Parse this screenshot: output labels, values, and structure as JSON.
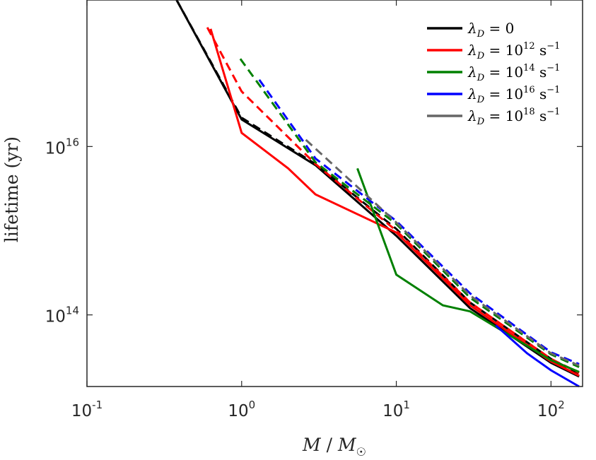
{
  "chart_data": {
    "type": "line",
    "xscale": "log",
    "yscale": "log",
    "xlim": [
      0.1,
      160
    ],
    "ylim": [
      14100000000000.0,
      5.5e+17
    ],
    "xlabel": "M / M☉",
    "ylabel": "lifetime (yr)",
    "xticks": [
      {
        "value": 0.1,
        "base": "10",
        "exp": "-1"
      },
      {
        "value": 1,
        "base": "10",
        "exp": "0"
      },
      {
        "value": 10,
        "base": "10",
        "exp": "1"
      },
      {
        "value": 100,
        "base": "10",
        "exp": "2"
      }
    ],
    "yticks": [
      {
        "value": 100000000000000.0,
        "base": "10",
        "exp": "14"
      },
      {
        "value": 1e+16,
        "base": "10",
        "exp": "16"
      }
    ],
    "grid": false,
    "legend_position": "top-right",
    "series": [
      {
        "name": "λD = 0",
        "symbol": "λ",
        "sub": "D",
        "rest": " = 0",
        "exp": "",
        "unit": "",
        "color": "#000000",
        "solid": [
          [
            0.38,
            5.5e+17
          ],
          [
            1.0,
            2.1e+16
          ],
          [
            3.0,
            6000000000000000.0
          ],
          [
            10.0,
            870000000000000.0
          ],
          [
            30.0,
            120000000000000.0
          ],
          [
            100.0,
            27000000000000.0
          ],
          [
            152.0,
            18500000000000.0
          ]
        ],
        "dashed": [
          [
            0.38,
            5.5e+17
          ],
          [
            1.0,
            2.2e+16
          ],
          [
            3.0,
            6200000000000000.0
          ],
          [
            10.0,
            1050000000000000.0
          ],
          [
            30.0,
            140000000000000.0
          ],
          [
            100.0,
            30000000000000.0
          ],
          [
            152.0,
            20000000000000.0
          ]
        ]
      },
      {
        "name": "λD = 10^12 s^-1",
        "symbol": "λ",
        "sub": "D",
        "rest": " = 10",
        "exp": "12",
        "unit": " s",
        "color": "#ff0000",
        "solid": [
          [
            0.63,
            2.5e+17
          ],
          [
            1.0,
            1.45e+16
          ],
          [
            2.0,
            5500000000000000.0
          ],
          [
            3.0,
            2700000000000000.0
          ],
          [
            10.0,
            950000000000000.0
          ],
          [
            30.0,
            130000000000000.0
          ],
          [
            100.0,
            28000000000000.0
          ],
          [
            152.0,
            19000000000000.0
          ]
        ],
        "dashed": [
          [
            0.6,
            2.6e+17
          ],
          [
            1.0,
            4.5e+16
          ],
          [
            3.0,
            6200000000000000.0
          ],
          [
            10.0,
            1000000000000000.0
          ],
          [
            30.0,
            140000000000000.0
          ],
          [
            100.0,
            30000000000000.0
          ],
          [
            152.0,
            20500000000000.0
          ]
        ]
      },
      {
        "name": "λD = 10^14 s^-1",
        "symbol": "λ",
        "sub": "D",
        "rest": " = 10",
        "exp": "14",
        "unit": " s",
        "color": "#008000",
        "solid": [
          [
            5.6,
            5500000000000000.0
          ],
          [
            10.0,
            300000000000000.0
          ],
          [
            20.0,
            130000000000000.0
          ],
          [
            30.0,
            110000000000000.0
          ],
          [
            100.0,
            29000000000000.0
          ],
          [
            152.0,
            21000000000000.0
          ]
        ],
        "dashed": [
          [
            0.98,
            1.1e+17
          ],
          [
            3.0,
            6500000000000000.0
          ],
          [
            10.0,
            1200000000000000.0
          ],
          [
            30.0,
            160000000000000.0
          ],
          [
            100.0,
            34000000000000.0
          ],
          [
            152.0,
            24000000000000.0
          ]
        ]
      },
      {
        "name": "λD = 10^16 s^-1",
        "symbol": "λ",
        "sub": "D",
        "rest": " = 10",
        "exp": "16",
        "unit": " s",
        "color": "#0000ff",
        "solid": [
          [
            44.0,
            75000000000000.0
          ],
          [
            70.0,
            35000000000000.0
          ],
          [
            100.0,
            22000000000000.0
          ],
          [
            152.0,
            14100000000000.0
          ]
        ],
        "dashed": [
          [
            1.3,
            6.2e+16
          ],
          [
            3.0,
            7200000000000000.0
          ],
          [
            10.0,
            1300000000000000.0
          ],
          [
            30.0,
            180000000000000.0
          ],
          [
            100.0,
            36000000000000.0
          ],
          [
            152.0,
            26000000000000.0
          ]
        ]
      },
      {
        "name": "λD = 10^18 s^-1",
        "symbol": "λ",
        "sub": "D",
        "rest": " = 10",
        "exp": "18",
        "unit": " s",
        "color": "#666666",
        "solid": [],
        "dashed": [
          [
            2.6,
            1.2e+16
          ],
          [
            10.0,
            1250000000000000.0
          ],
          [
            30.0,
            170000000000000.0
          ],
          [
            100.0,
            35000000000000.0
          ],
          [
            152.0,
            25000000000000.0
          ]
        ]
      }
    ]
  }
}
